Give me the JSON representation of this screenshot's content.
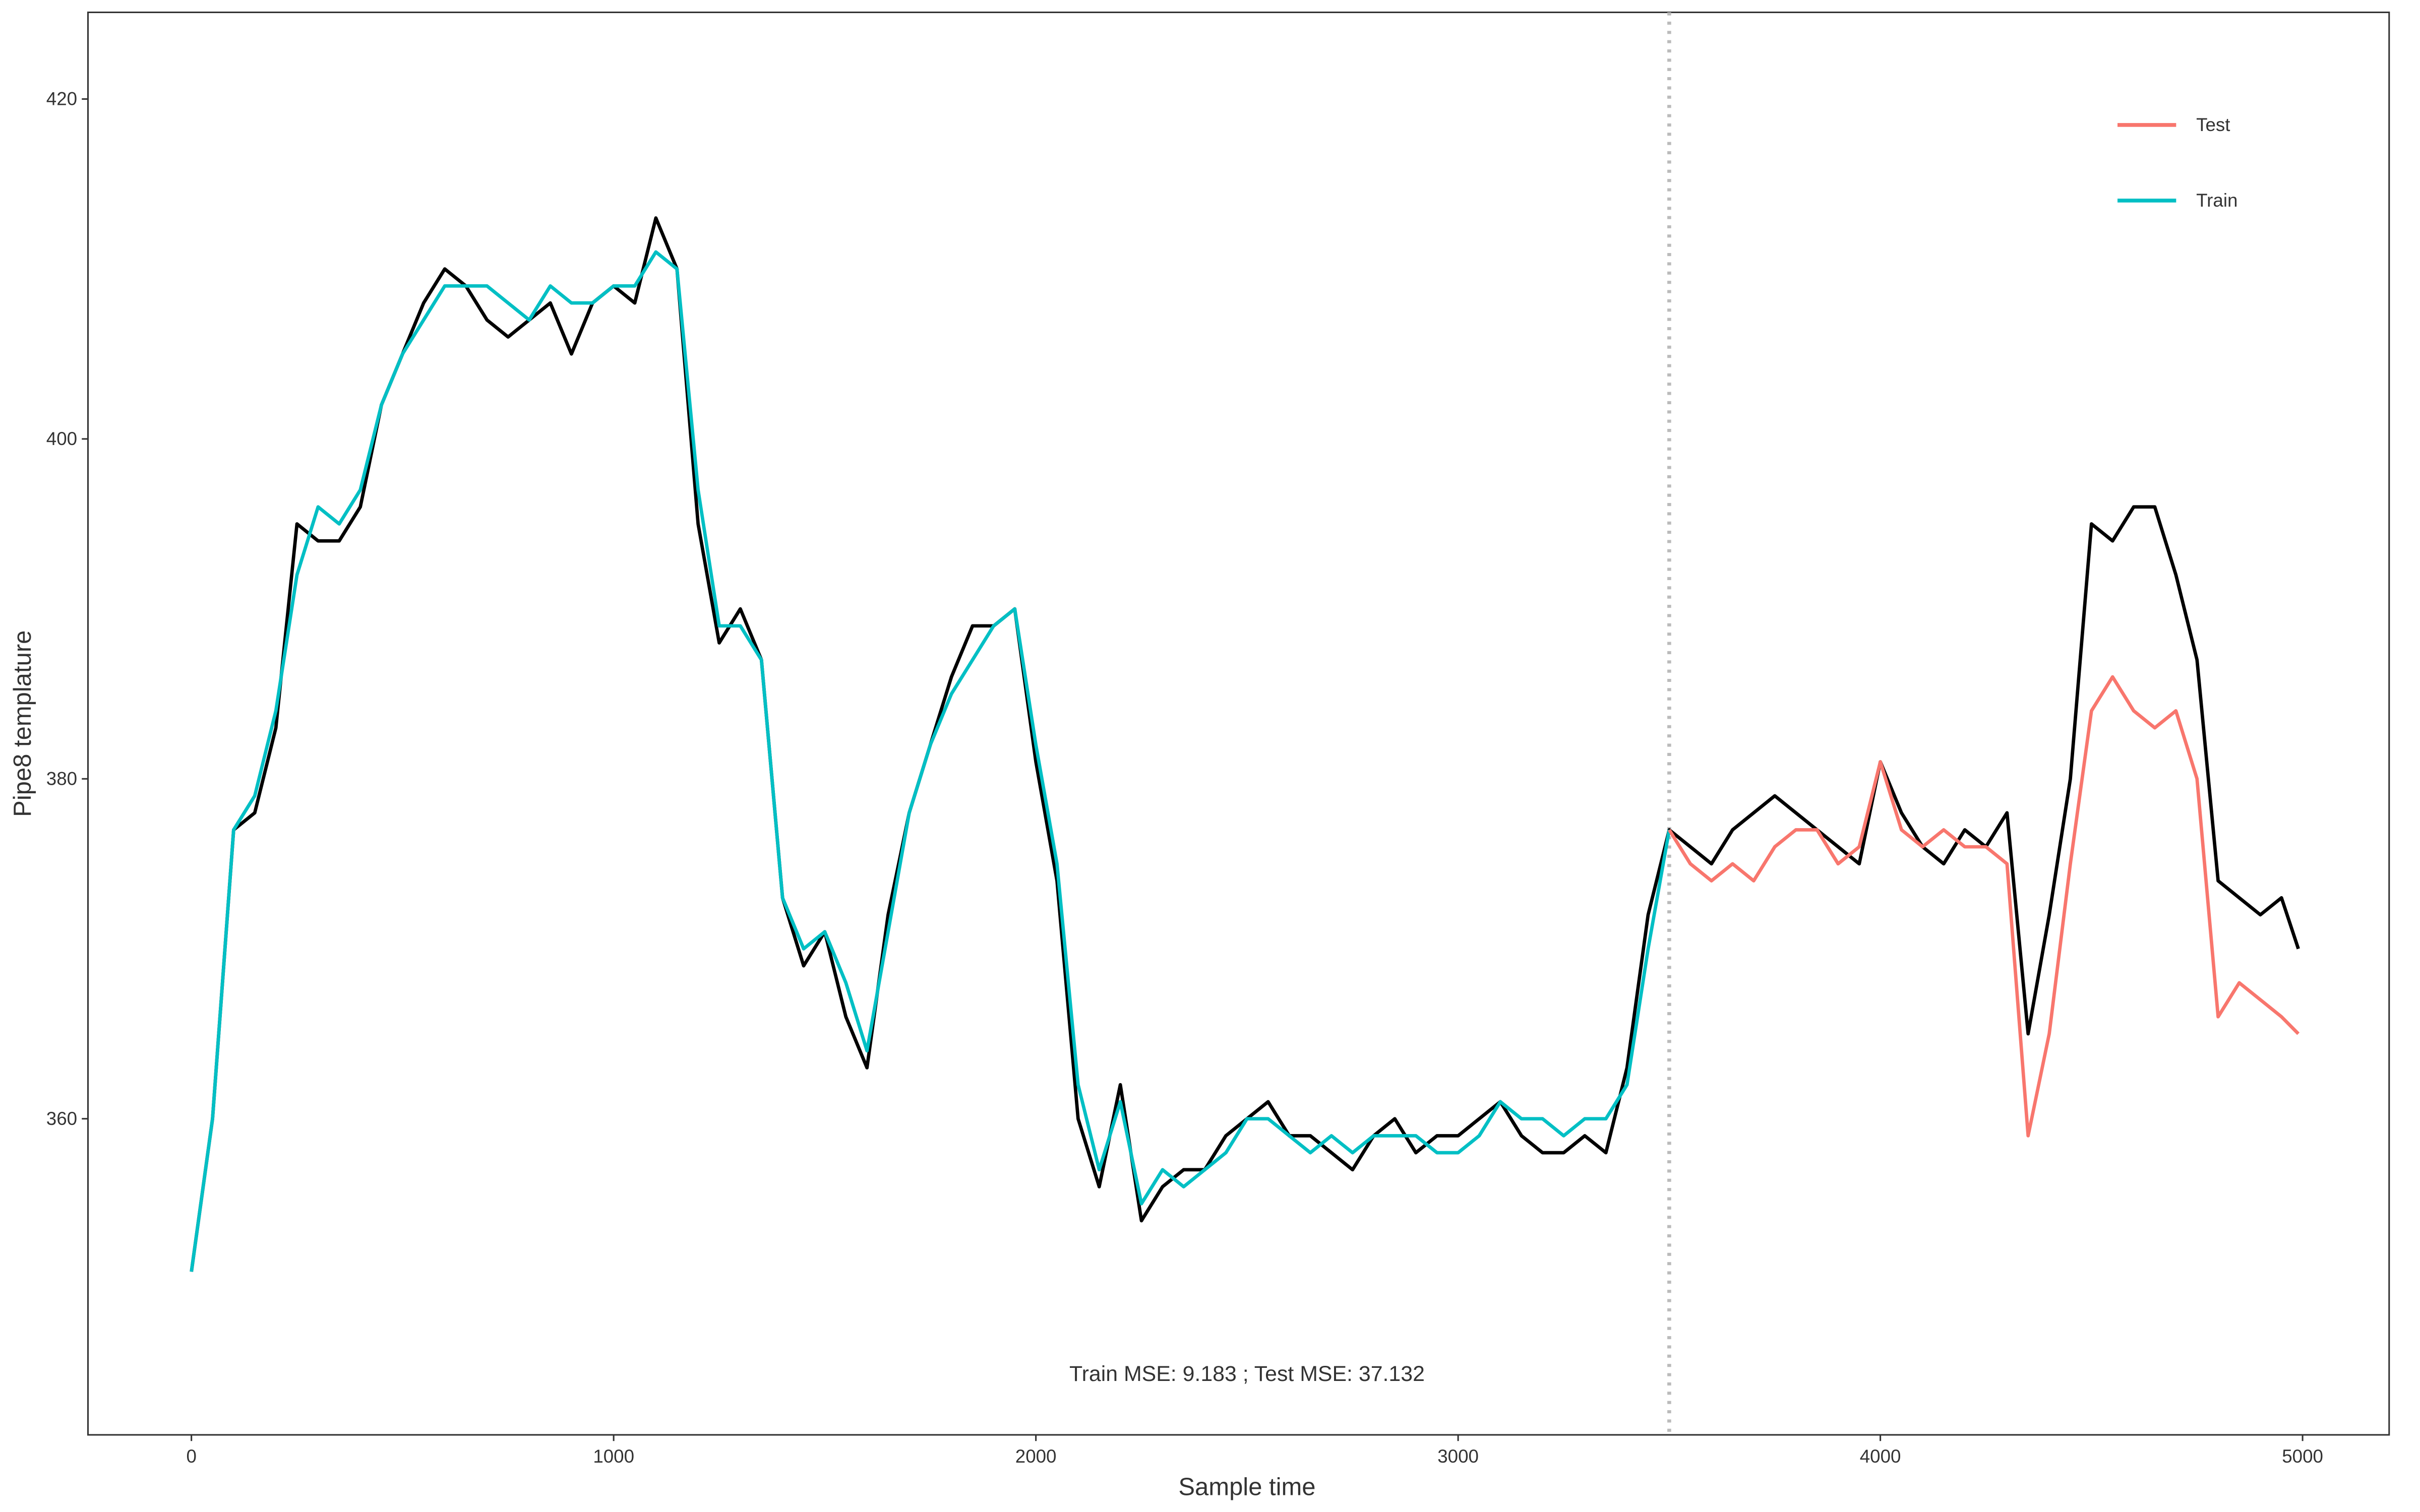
{
  "chart_data": {
    "type": "line",
    "x_label": "Sample time",
    "y_label": "Pipe8 templature",
    "annotation": "Train MSE: 9.183 ;   Test MSE: 37.132",
    "xlim": [
      -245,
      5205
    ],
    "ylim": [
      341.4,
      425.1
    ],
    "xticks": [
      0,
      1000,
      2000,
      3000,
      4000,
      5000
    ],
    "yticks": [
      360,
      380,
      400,
      420
    ],
    "grid": false,
    "vlines": [
      3500
    ],
    "legend": "top-right",
    "series": [
      {
        "color": "#000000",
        "x": [
          0,
          50,
          100,
          150,
          200,
          250,
          300,
          350,
          400,
          450,
          500,
          550,
          600,
          650,
          700,
          750,
          800,
          850,
          900,
          950,
          1000,
          1050,
          1100,
          1150,
          1200,
          1250,
          1300,
          1350,
          1400,
          1450,
          1500,
          1550,
          1600,
          1650,
          1700,
          1750,
          1800,
          1850,
          1900,
          1950,
          2000,
          2050,
          2100,
          2150,
          2200,
          2250,
          2300,
          2350,
          2400,
          2450,
          2500,
          2550,
          2600,
          2650,
          2700,
          2750,
          2800,
          2850,
          2900,
          2950,
          3000,
          3050,
          3100,
          3150,
          3200,
          3250,
          3300,
          3350,
          3400,
          3450,
          3500,
          3550,
          3600,
          3650,
          3700,
          3750,
          3800,
          3850,
          3900,
          3950,
          4000,
          4050,
          4100,
          4150,
          4200,
          4250,
          4300,
          4350,
          4400,
          4450,
          4500,
          4550,
          4600,
          4650,
          4700,
          4750,
          4800,
          4850,
          4900,
          4950,
          4990
        ],
        "values": [
          351,
          360,
          377,
          378,
          383,
          395,
          394,
          394,
          396,
          402,
          405,
          408,
          410,
          409,
          407,
          406,
          407,
          408,
          405,
          408,
          409,
          408,
          413,
          410,
          395,
          388,
          390,
          387,
          373,
          369,
          371,
          366,
          363,
          372,
          378,
          382,
          386,
          389,
          389,
          390,
          381,
          374,
          360,
          356,
          362,
          354,
          356,
          357,
          357,
          359,
          360,
          361,
          359,
          359,
          358,
          357,
          359,
          360,
          358,
          359,
          359,
          360,
          361,
          359,
          358,
          358,
          359,
          358,
          363,
          372,
          377,
          376,
          375,
          377,
          378,
          379,
          378,
          377,
          376,
          375,
          381,
          378,
          376,
          375,
          377,
          376,
          378,
          365,
          372,
          380,
          395,
          394,
          396,
          396,
          392,
          387,
          374,
          373,
          372,
          373,
          370
        ]
      },
      {
        "name": "Train",
        "color": "#00BFC4",
        "x": [
          0,
          50,
          100,
          150,
          200,
          250,
          300,
          350,
          400,
          450,
          500,
          550,
          600,
          650,
          700,
          750,
          800,
          850,
          900,
          950,
          1000,
          1050,
          1100,
          1150,
          1200,
          1250,
          1300,
          1350,
          1400,
          1450,
          1500,
          1550,
          1600,
          1650,
          1700,
          1750,
          1800,
          1850,
          1900,
          1950,
          2000,
          2050,
          2100,
          2150,
          2200,
          2250,
          2300,
          2350,
          2400,
          2450,
          2500,
          2550,
          2600,
          2650,
          2700,
          2750,
          2800,
          2850,
          2900,
          2950,
          3000,
          3050,
          3100,
          3150,
          3200,
          3250,
          3300,
          3350,
          3400,
          3450,
          3500
        ],
        "values": [
          351,
          360,
          377,
          379,
          384,
          392,
          396,
          395,
          397,
          402,
          405,
          407,
          409,
          409,
          409,
          408,
          407,
          409,
          408,
          408,
          409,
          409,
          411,
          410,
          397,
          389,
          389,
          387,
          373,
          370,
          371,
          368,
          364,
          371,
          378,
          382,
          385,
          387,
          389,
          390,
          382,
          375,
          362,
          357,
          361,
          355,
          357,
          356,
          357,
          358,
          360,
          360,
          359,
          358,
          359,
          358,
          359,
          359,
          359,
          358,
          358,
          359,
          361,
          360,
          360,
          359,
          360,
          360,
          362,
          370,
          377
        ]
      },
      {
        "name": "Test",
        "color": "#F8766D",
        "x": [
          3500,
          3550,
          3600,
          3650,
          3700,
          3750,
          3800,
          3850,
          3900,
          3950,
          4000,
          4050,
          4100,
          4150,
          4200,
          4250,
          4300,
          4350,
          4400,
          4450,
          4500,
          4550,
          4600,
          4650,
          4700,
          4750,
          4800,
          4850,
          4900,
          4950,
          4990
        ],
        "values": [
          377,
          375,
          374,
          375,
          374,
          376,
          377,
          377,
          375,
          376,
          381,
          377,
          376,
          377,
          376,
          376,
          375,
          359,
          365,
          375,
          384,
          386,
          384,
          383,
          384,
          380,
          366,
          368,
          367,
          366,
          365
        ]
      }
    ]
  }
}
